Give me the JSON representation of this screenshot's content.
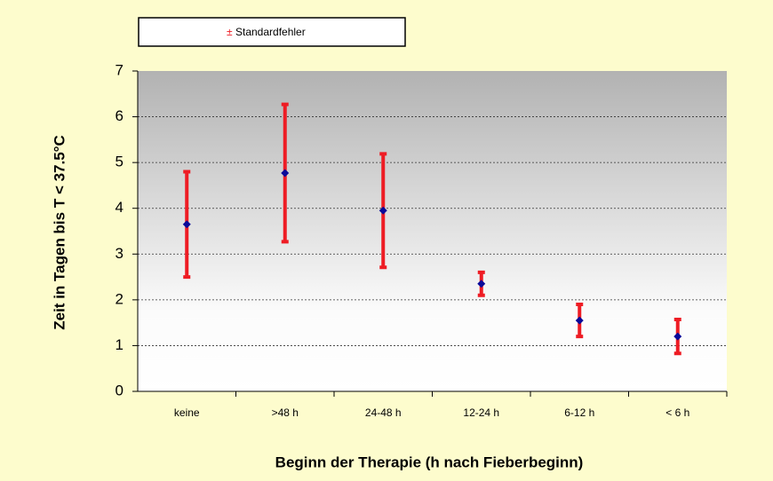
{
  "chart_data": {
    "type": "errorbar",
    "x_label": "Beginn der Therapie (h nach Fieberbeginn)",
    "y_label": "Zeit in Tagen bis T < 37.5°C",
    "categories": [
      "keine",
      ">48 h",
      "24-48 h",
      "12-24 h",
      "6-12 h",
      "< 6 h"
    ],
    "series": [
      {
        "name": "Standardfehler",
        "error_symbol": "±",
        "color": "#0a0a9a",
        "error_color": "#ee1c24",
        "values": [
          3.65,
          4.77,
          3.95,
          2.35,
          1.55,
          1.2
        ],
        "errors": [
          1.15,
          1.5,
          1.24,
          0.25,
          0.35,
          0.37
        ]
      }
    ],
    "ylim": [
      0,
      7
    ],
    "yticks": [
      0,
      1,
      2,
      3,
      4,
      5,
      6,
      7
    ],
    "grid": true
  }
}
